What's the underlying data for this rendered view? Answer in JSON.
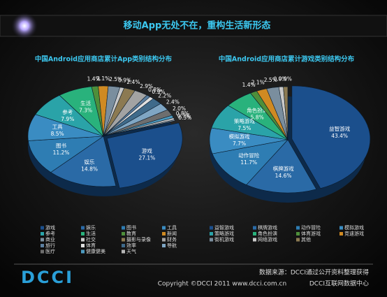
{
  "header": {
    "title": "移动App无处不在，重构生活新形态"
  },
  "chart_data": [
    {
      "type": "pie",
      "title": "中国Android应用商店累计App类别结构分布",
      "categories": [
        "游戏",
        "娱乐",
        "图书",
        "工具",
        "参考",
        "生活",
        "教育",
        "新闻",
        "商业",
        "社交",
        "摄影与录像",
        "财务",
        "旅行",
        "体育",
        "效率",
        "导航",
        "医疗",
        "健康健美",
        "天气",
        null
      ],
      "values": [
        27.1,
        14.8,
        11.2,
        8.5,
        7.9,
        7.3,
        1.4,
        2.1,
        2.5,
        0.9,
        2.4,
        2.9,
        0.8,
        0.9,
        2.2,
        2.4,
        2.0,
        0.8,
        0.7,
        0.3
      ],
      "value_labels": [
        "27.1%",
        "14.8%",
        "11.2%",
        "8.5%",
        "7.9%",
        "7.3%",
        "1.4%",
        "2.1%",
        "2.5%",
        "0.9%",
        "2.4%",
        "2.9%",
        "0.8%",
        "0.9%",
        "2.2%",
        "2.4%",
        "2.0%",
        "0.8%",
        "0.7%",
        "0.3%"
      ],
      "colors": [
        "#1b4f8c",
        "#2a6aa6",
        "#2e7db3",
        "#3a8cc2",
        "#2aa3a8",
        "#29b27c",
        "#4e8f3a",
        "#d08a22",
        "#7a8e9e",
        "#c9c9c9",
        "#8c7a52",
        "#a3a3a3",
        "#5c7fa0",
        "#e0e0e0",
        "#3f6a8a",
        "#7fa6c4",
        "#6e6e6e",
        "#4d9bc0",
        "#b7b7b7",
        "#9aa8b4"
      ]
    },
    {
      "type": "pie",
      "title": "中国Android应用商店累计游戏类别结构分布",
      "categories": [
        "益智游戏",
        "棋牌游戏",
        "动作冒险",
        "模拟游戏",
        "策略游戏",
        "角色扮演",
        "体育游戏",
        "竞速游戏",
        "街机游戏",
        "网络游戏",
        "其他"
      ],
      "values": [
        43.4,
        14.6,
        11.7,
        7.7,
        7.5,
        5.8,
        1.4,
        2.1,
        2.5,
        0.9,
        0.9
      ],
      "value_labels": [
        "43.4%",
        "14.6%",
        "11.7%",
        "7.7%",
        "7.5%",
        "5.8%",
        "1.4%",
        "2.1%",
        "2.5%",
        "0.9%",
        "0.9%"
      ],
      "colors": [
        "#1b4f8c",
        "#2a6aa6",
        "#2e7db3",
        "#3a8cc2",
        "#2aa3a8",
        "#29b27c",
        "#4e8f3a",
        "#d08a22",
        "#7a8e9e",
        "#c9c9c9",
        "#8c7a52"
      ]
    }
  ],
  "footer": {
    "source": "数据来源：DCCI通过公开资料整理获得",
    "copyright": "Copyright ©DCCI 2011 www.dcci.com.cn",
    "org": "DCCI互联网数据中心",
    "logo": "DCCI"
  }
}
